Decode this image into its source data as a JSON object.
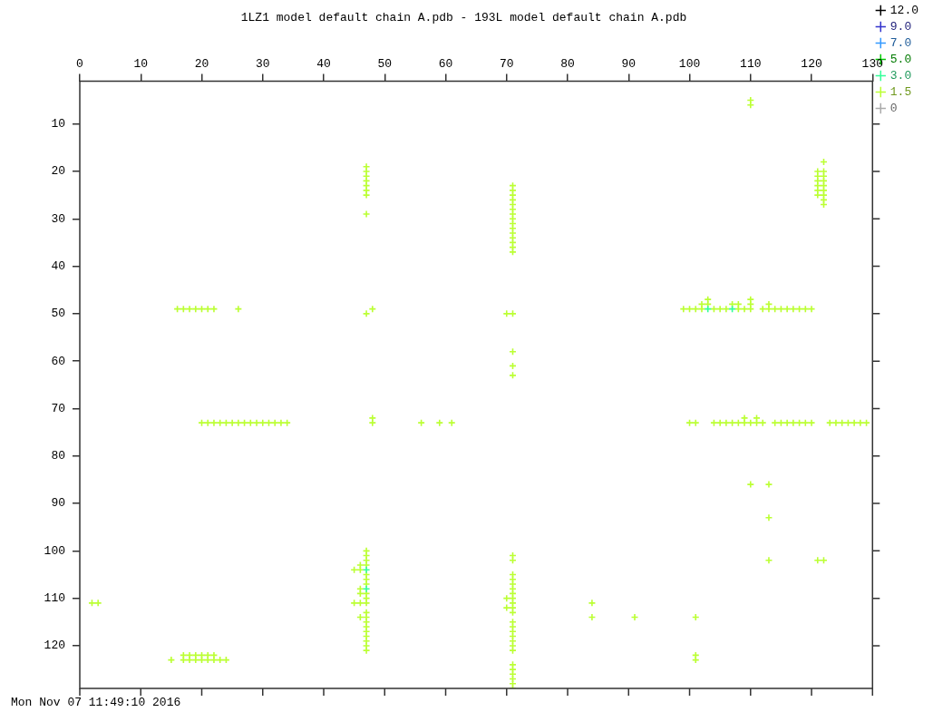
{
  "chart_data": {
    "type": "scatter",
    "title": "1LZ1 model default chain A.pdb - 193L model default chain A.pdb",
    "annotations": [
      "Mon Nov 07 11:49:10 2016"
    ],
    "xlim": [
      0,
      130
    ],
    "xticks": [
      0,
      10,
      20,
      30,
      40,
      50,
      60,
      70,
      80,
      90,
      100,
      110,
      120,
      130
    ],
    "ylim": [
      129,
      1
    ],
    "yticks": [
      10,
      20,
      30,
      40,
      50,
      60,
      70,
      80,
      90,
      100,
      110,
      120
    ],
    "legend": "top right",
    "marker": "cross",
    "series": [
      {
        "name": "12.0",
        "color": "#000000"
      },
      {
        "name": "9.0",
        "color": "#3333cc"
      },
      {
        "name": "7.0",
        "color": "#3399ff"
      },
      {
        "name": "5.0",
        "color": "#00cc00"
      },
      {
        "name": "3.0",
        "color": "#33ff99",
        "x": [
          103,
          107,
          47,
          47
        ],
        "values": [
          49,
          49,
          104,
          108
        ]
      },
      {
        "name": "1.5",
        "color": "#bbff33",
        "x": [
          47,
          47,
          47,
          47,
          47,
          47,
          47,
          47,
          47,
          48,
          16,
          17,
          18,
          19,
          20,
          21,
          22,
          26,
          70,
          71,
          71,
          71,
          71,
          71,
          71,
          71,
          71,
          71,
          71,
          71,
          71,
          71,
          71,
          71,
          71,
          71,
          71,
          71,
          110,
          110,
          121,
          121,
          121,
          121,
          121,
          121,
          122,
          122,
          122,
          122,
          122,
          122,
          122,
          122,
          122,
          99,
          100,
          101,
          102,
          104,
          105,
          106,
          108,
          109,
          110,
          112,
          113,
          114,
          115,
          116,
          117,
          118,
          119,
          120,
          102,
          103,
          103,
          107,
          108,
          110,
          110,
          113,
          20,
          21,
          22,
          23,
          24,
          25,
          26,
          27,
          28,
          29,
          30,
          31,
          32,
          33,
          34,
          48,
          48,
          56,
          59,
          61,
          100,
          101,
          104,
          105,
          106,
          107,
          108,
          109,
          110,
          111,
          112,
          114,
          115,
          116,
          117,
          118,
          119,
          120,
          123,
          124,
          125,
          126,
          127,
          128,
          129,
          109,
          111,
          110,
          113,
          113,
          113,
          121,
          122,
          2,
          3,
          17,
          18,
          19,
          20,
          21,
          22,
          15,
          17,
          18,
          19,
          20,
          21,
          22,
          23,
          24,
          47,
          47,
          47,
          47,
          47,
          47,
          47,
          47,
          47,
          47,
          47,
          47,
          47,
          47,
          47,
          47,
          47,
          47,
          47,
          46,
          46,
          46,
          46,
          46,
          46,
          45,
          45,
          71,
          71,
          71,
          71,
          71,
          71,
          71,
          71,
          71,
          71,
          71,
          71,
          71,
          71,
          71,
          71,
          71,
          71,
          71,
          71,
          71,
          71,
          71,
          71,
          70,
          70,
          84,
          84,
          91,
          101,
          101,
          101
        ],
        "values": [
          19,
          20,
          21,
          22,
          23,
          24,
          25,
          29,
          50,
          49,
          49,
          49,
          49,
          49,
          49,
          49,
          49,
          49,
          50,
          50,
          23,
          24,
          25,
          26,
          27,
          28,
          29,
          30,
          31,
          32,
          33,
          34,
          35,
          36,
          37,
          58,
          61,
          63,
          5,
          6,
          20,
          21,
          22,
          23,
          24,
          25,
          18,
          20,
          21,
          22,
          23,
          24,
          25,
          26,
          27,
          49,
          49,
          49,
          49,
          49,
          49,
          49,
          49,
          49,
          49,
          49,
          49,
          49,
          49,
          49,
          49,
          49,
          49,
          49,
          48,
          48,
          47,
          48,
          48,
          47,
          48,
          48,
          73,
          73,
          73,
          73,
          73,
          73,
          73,
          73,
          73,
          73,
          73,
          73,
          73,
          73,
          73,
          72,
          73,
          73,
          73,
          73,
          73,
          73,
          73,
          73,
          73,
          73,
          73,
          73,
          73,
          73,
          73,
          73,
          73,
          73,
          73,
          73,
          73,
          73,
          73,
          73,
          73,
          73,
          73,
          73,
          73,
          72,
          72,
          86,
          86,
          93,
          102,
          102,
          102,
          111,
          111,
          122,
          122,
          122,
          122,
          122,
          122,
          123,
          123,
          123,
          123,
          123,
          123,
          123,
          123,
          123,
          100,
          101,
          102,
          103,
          105,
          106,
          107,
          109,
          110,
          111,
          113,
          114,
          115,
          116,
          117,
          118,
          119,
          120,
          121,
          103,
          104,
          108,
          109,
          111,
          114,
          104,
          111,
          101,
          102,
          105,
          106,
          107,
          108,
          109,
          110,
          111,
          112,
          113,
          115,
          116,
          117,
          118,
          119,
          120,
          121,
          124,
          125,
          126,
          127,
          128,
          129,
          110,
          112,
          111,
          114,
          114,
          114,
          122,
          123
        ]
      },
      {
        "name": "0",
        "color": "#aaaaaa"
      }
    ]
  }
}
